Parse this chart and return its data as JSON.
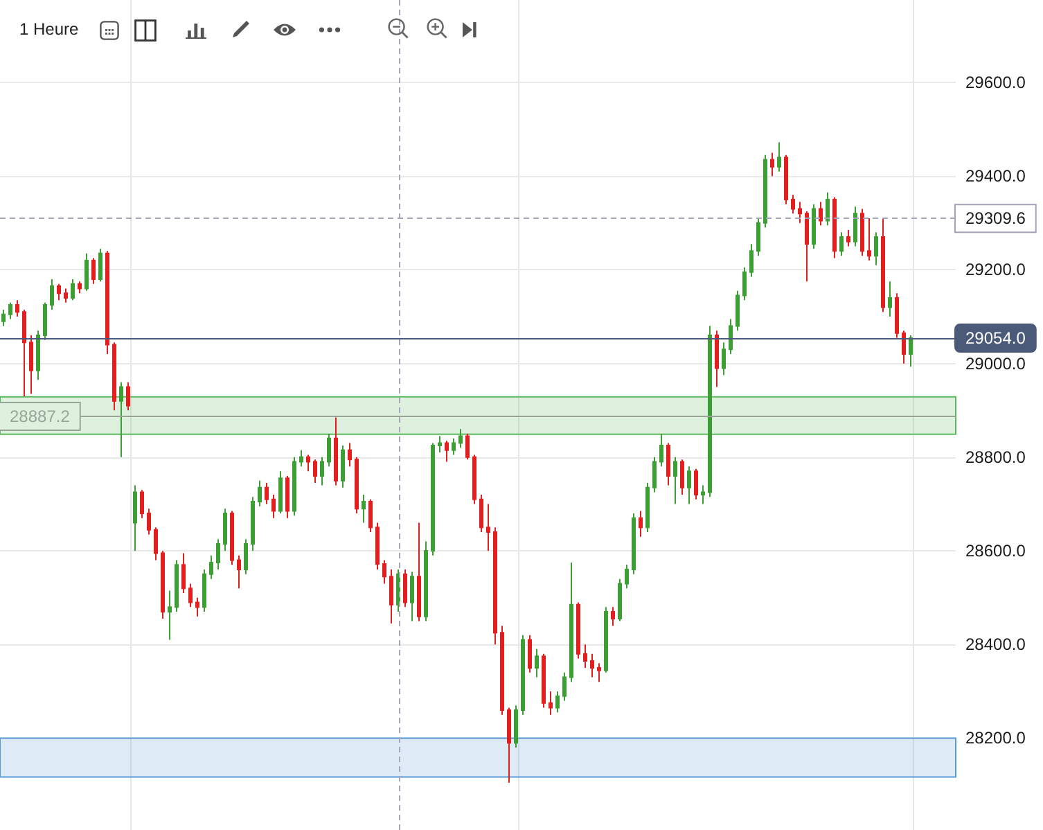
{
  "chart_data": {
    "type": "candlestick",
    "annotations": [
      "1 Heure"
    ],
    "categories": [
      null,
      null,
      null,
      null,
      null,
      null,
      null,
      null,
      null,
      null,
      null,
      null,
      null,
      null,
      null,
      null,
      null,
      null,
      null,
      null,
      null,
      null,
      null,
      null,
      null,
      null,
      null,
      null,
      null,
      null,
      null,
      null,
      null,
      null,
      null,
      null,
      null,
      null,
      null,
      null,
      null,
      null,
      null,
      null,
      null,
      null,
      null,
      null,
      null,
      null,
      null,
      null,
      null,
      null,
      null,
      null,
      null,
      null,
      null,
      null,
      null,
      null,
      null,
      null,
      null,
      null,
      null,
      null,
      null,
      null,
      null,
      null,
      null,
      null,
      null,
      null,
      null,
      null,
      null,
      null,
      null,
      null,
      null,
      null,
      null,
      null,
      null,
      null,
      null,
      null,
      null,
      null,
      null,
      null,
      null,
      null,
      null,
      null,
      null,
      null,
      null,
      null,
      null,
      null,
      null,
      null,
      null,
      null,
      null,
      null,
      null,
      null,
      null,
      null,
      null,
      null,
      null,
      null,
      null,
      null,
      null,
      null,
      null,
      null,
      null,
      null,
      null,
      null,
      null,
      null,
      null,
      null
    ],
    "ohlc": [
      [
        29090,
        29115,
        29080,
        29105
      ],
      [
        29105,
        29130,
        29095,
        29125
      ],
      [
        29125,
        29135,
        29100,
        29110
      ],
      [
        29110,
        29115,
        28930,
        29045
      ],
      [
        29045,
        29060,
        28935,
        28985
      ],
      [
        28985,
        29070,
        28965,
        29060
      ],
      [
        29060,
        29130,
        29050,
        29125
      ],
      [
        29125,
        29180,
        29115,
        29165
      ],
      [
        29165,
        29170,
        29135,
        29150
      ],
      [
        29150,
        29160,
        29130,
        29140
      ],
      [
        29140,
        29180,
        29135,
        29170
      ],
      [
        29170,
        29175,
        29150,
        29160
      ],
      [
        29160,
        29235,
        29155,
        29220
      ],
      [
        29220,
        29225,
        29170,
        29180
      ],
      [
        29180,
        29245,
        29175,
        29235
      ],
      [
        29235,
        29240,
        29020,
        29040
      ],
      [
        29040,
        29045,
        28900,
        28920
      ],
      [
        28920,
        28960,
        28800,
        28950
      ],
      [
        28950,
        28960,
        28900,
        28910
      ],
      [
        28660,
        28740,
        28600,
        28725
      ],
      [
        28725,
        28730,
        28670,
        28680
      ],
      [
        28680,
        28690,
        28635,
        28645
      ],
      [
        28645,
        28650,
        28580,
        28595
      ],
      [
        28595,
        28600,
        28455,
        28470
      ],
      [
        28470,
        28515,
        28410,
        28480
      ],
      [
        28480,
        28580,
        28470,
        28570
      ],
      [
        28570,
        28595,
        28510,
        28520
      ],
      [
        28520,
        28530,
        28480,
        28490
      ],
      [
        28490,
        28500,
        28460,
        28480
      ],
      [
        28480,
        28560,
        28470,
        28550
      ],
      [
        28550,
        28590,
        28540,
        28575
      ],
      [
        28575,
        28625,
        28560,
        28615
      ],
      [
        28615,
        28690,
        28600,
        28680
      ],
      [
        28680,
        28685,
        28570,
        28580
      ],
      [
        28580,
        28590,
        28520,
        28560
      ],
      [
        28560,
        28625,
        28550,
        28615
      ],
      [
        28615,
        28715,
        28600,
        28705
      ],
      [
        28705,
        28750,
        28695,
        28735
      ],
      [
        28735,
        28745,
        28700,
        28710
      ],
      [
        28710,
        28720,
        28670,
        28685
      ],
      [
        28685,
        28770,
        28680,
        28755
      ],
      [
        28755,
        28760,
        28670,
        28685
      ],
      [
        28685,
        28800,
        28675,
        28790
      ],
      [
        28790,
        28815,
        28780,
        28800
      ],
      [
        28800,
        28805,
        28770,
        28790
      ],
      [
        28790,
        28795,
        28745,
        28760
      ],
      [
        28760,
        28800,
        28740,
        28790
      ],
      [
        28790,
        28850,
        28780,
        28840
      ],
      [
        28840,
        28885,
        28740,
        28750
      ],
      [
        28750,
        28825,
        28735,
        28815
      ],
      [
        28815,
        28830,
        28780,
        28795
      ],
      [
        28795,
        28800,
        28680,
        28690
      ],
      [
        28690,
        28720,
        28660,
        28705
      ],
      [
        28705,
        28710,
        28640,
        28650
      ],
      [
        28650,
        28660,
        28560,
        28572
      ],
      [
        28572,
        28580,
        28530,
        28545
      ],
      [
        28545,
        28560,
        28445,
        28485
      ],
      [
        28485,
        28560,
        28470,
        28550
      ],
      [
        28550,
        28560,
        28480,
        28490
      ],
      [
        28490,
        28555,
        28450,
        28545
      ],
      [
        28545,
        28660,
        28450,
        28460
      ],
      [
        28460,
        28620,
        28450,
        28600
      ],
      [
        28600,
        28830,
        28590,
        28825
      ],
      [
        28825,
        28845,
        28810,
        28830
      ],
      [
        28830,
        28835,
        28790,
        28815
      ],
      [
        28815,
        28840,
        28805,
        28830
      ],
      [
        28830,
        28860,
        28820,
        28845
      ],
      [
        28845,
        28850,
        28795,
        28800
      ],
      [
        28800,
        28805,
        28700,
        28710
      ],
      [
        28710,
        28720,
        28640,
        28650
      ],
      [
        28650,
        28700,
        28600,
        28640
      ],
      [
        28640,
        28650,
        28400,
        28425
      ],
      [
        28425,
        28440,
        28250,
        28260
      ],
      [
        28260,
        28265,
        28105,
        28190
      ],
      [
        28190,
        28270,
        28180,
        28260
      ],
      [
        28260,
        28420,
        28250,
        28410
      ],
      [
        28410,
        28420,
        28340,
        28350
      ],
      [
        28350,
        28390,
        28330,
        28375
      ],
      [
        28375,
        28380,
        28265,
        28275
      ],
      [
        28275,
        28300,
        28250,
        28265
      ],
      [
        28265,
        28300,
        28255,
        28290
      ],
      [
        28290,
        28340,
        28280,
        28330
      ],
      [
        28330,
        28575,
        28320,
        28485
      ],
      [
        28485,
        28490,
        28370,
        28380
      ],
      [
        28380,
        28400,
        28350,
        28365
      ],
      [
        28365,
        28380,
        28330,
        28350
      ],
      [
        28350,
        28360,
        28320,
        28345
      ],
      [
        28345,
        28480,
        28340,
        28470
      ],
      [
        28470,
        28480,
        28440,
        28455
      ],
      [
        28455,
        28540,
        28450,
        28530
      ],
      [
        28530,
        28570,
        28520,
        28560
      ],
      [
        28560,
        28680,
        28550,
        28670
      ],
      [
        28670,
        28685,
        28630,
        28650
      ],
      [
        28650,
        28745,
        28640,
        28735
      ],
      [
        28735,
        28800,
        28725,
        28790
      ],
      [
        28790,
        28850,
        28780,
        28825
      ],
      [
        28825,
        28830,
        28740,
        28760
      ],
      [
        28760,
        28800,
        28700,
        28790
      ],
      [
        28790,
        28795,
        28720,
        28735
      ],
      [
        28735,
        28780,
        28700,
        28770
      ],
      [
        28770,
        28775,
        28710,
        28720
      ],
      [
        28720,
        28740,
        28700,
        28725
      ],
      [
        28725,
        29080,
        28715,
        29060
      ],
      [
        29060,
        29070,
        28950,
        28990
      ],
      [
        28990,
        29045,
        28975,
        29030
      ],
      [
        29030,
        29095,
        29020,
        29080
      ],
      [
        29080,
        29155,
        29070,
        29145
      ],
      [
        29145,
        29205,
        29135,
        29195
      ],
      [
        29195,
        29255,
        29185,
        29240
      ],
      [
        29240,
        29310,
        29230,
        29300
      ],
      [
        29300,
        29445,
        29290,
        29435
      ],
      [
        29435,
        29450,
        29400,
        29420
      ],
      [
        29420,
        29472,
        29410,
        29440
      ],
      [
        29440,
        29445,
        29340,
        29350
      ],
      [
        29350,
        29360,
        29320,
        29330
      ],
      [
        29330,
        29345,
        29300,
        29320
      ],
      [
        29320,
        29325,
        29175,
        29255
      ],
      [
        29255,
        29340,
        29245,
        29330
      ],
      [
        29330,
        29345,
        29295,
        29305
      ],
      [
        29305,
        29365,
        29295,
        29350
      ],
      [
        29350,
        29355,
        29225,
        29240
      ],
      [
        29240,
        29280,
        29230,
        29270
      ],
      [
        29270,
        29285,
        29250,
        29260
      ],
      [
        29260,
        29335,
        29250,
        29320
      ],
      [
        29320,
        29330,
        29230,
        29240
      ],
      [
        29240,
        29310,
        29220,
        29230
      ],
      [
        29230,
        29280,
        29210,
        29270
      ],
      [
        29270,
        29310,
        29110,
        29120
      ],
      [
        29120,
        29175,
        29100,
        29140
      ],
      [
        29140,
        29150,
        29055,
        29065
      ],
      [
        29065,
        29070,
        29000,
        29020
      ],
      [
        29020,
        29060,
        28993,
        29054
      ]
    ],
    "colors": [
      "#3d9e35",
      "#3d9e35",
      "#e31e1e",
      "#e31e1e",
      "#e31e1e",
      "#3d9e35",
      "#3d9e35",
      "#3d9e35",
      "#e31e1e",
      "#e31e1e",
      "#3d9e35",
      "#e31e1e",
      "#3d9e35",
      "#e31e1e",
      "#3d9e35",
      "#e31e1e",
      "#e31e1e",
      "#3d9e35",
      "#e31e1e",
      "#3d9e35",
      "#e31e1e",
      "#e31e1e",
      "#e31e1e",
      "#e31e1e",
      "#3d9e35",
      "#3d9e35",
      "#e31e1e",
      "#e31e1e",
      "#e31e1e",
      "#3d9e35",
      "#3d9e35",
      "#3d9e35",
      "#3d9e35",
      "#e31e1e",
      "#e31e1e",
      "#3d9e35",
      "#3d9e35",
      "#3d9e35",
      "#e31e1e",
      "#e31e1e",
      "#3d9e35",
      "#e31e1e",
      "#3d9e35",
      "#3d9e35",
      "#e31e1e",
      "#e31e1e",
      "#3d9e35",
      "#3d9e35",
      "#e31e1e",
      "#3d9e35",
      "#e31e1e",
      "#e31e1e",
      "#3d9e35",
      "#e31e1e",
      "#e31e1e",
      "#e31e1e",
      "#e31e1e",
      "#3d9e35",
      "#e31e1e",
      "#3d9e35",
      "#e31e1e",
      "#3d9e35",
      "#3d9e35",
      "#3d9e35",
      "#e31e1e",
      "#3d9e35",
      "#3d9e35",
      "#e31e1e",
      "#e31e1e",
      "#e31e1e",
      "#e31e1e",
      "#e31e1e",
      "#e31e1e",
      "#e31e1e",
      "#3d9e35",
      "#3d9e35",
      "#e31e1e",
      "#3d9e35",
      "#e31e1e",
      "#e31e1e",
      "#3d9e35",
      "#3d9e35",
      "#3d9e35",
      "#e31e1e",
      "#e31e1e",
      "#e31e1e",
      "#e31e1e",
      "#3d9e35",
      "#e31e1e",
      "#3d9e35",
      "#3d9e35",
      "#3d9e35",
      "#e31e1e",
      "#3d9e35",
      "#3d9e35",
      "#3d9e35",
      "#e31e1e",
      "#3d9e35",
      "#e31e1e",
      "#3d9e35",
      "#e31e1e",
      "#3d9e35",
      "#3d9e35",
      "#e31e1e",
      "#3d9e35",
      "#3d9e35",
      "#3d9e35",
      "#3d9e35",
      "#3d9e35",
      "#3d9e35",
      "#3d9e35",
      "#e31e1e",
      "#3d9e35",
      "#e31e1e",
      "#e31e1e",
      "#e31e1e",
      "#e31e1e",
      "#3d9e35",
      "#e31e1e",
      "#3d9e35",
      "#e31e1e",
      "#3d9e35",
      "#e31e1e",
      "#3d9e35",
      "#e31e1e",
      "#e31e1e",
      "#3d9e35",
      "#e31e1e",
      "#3d9e35",
      "#e31e1e",
      "#e31e1e",
      "#3d9e35"
    ],
    "ylim": [
      28004,
      29776
    ],
    "yticks": [
      {
        "value": 28200,
        "label": "28200.0"
      },
      {
        "value": 28400,
        "label": "28400.0"
      },
      {
        "value": 28600,
        "label": "28600.0"
      },
      {
        "value": 28800,
        "label": "28800.0"
      },
      {
        "value": 29000,
        "label": "29000.0"
      },
      {
        "value": 29200,
        "label": "29200.0"
      },
      {
        "value": 29400,
        "label": "29400.0"
      },
      {
        "value": 29600,
        "label": "29600.0"
      }
    ],
    "tick_labels": "y",
    "grid": "y",
    "ref_lines": [
      {
        "axis": "y",
        "value": 29309.6,
        "label": "29309.6",
        "color": "#a3a3b8",
        "line_style": "dashed"
      },
      {
        "axis": "y",
        "value": 29054,
        "label": "29054.0",
        "color": "#4a5a78",
        "line_style": "solid"
      },
      {
        "axis": "y",
        "value": 28887.2,
        "label": "28887.2",
        "color": "#9aa59a",
        "line_style": "solid"
      }
    ],
    "bands": [
      {
        "axis": "y",
        "from": 28849,
        "to": 28929,
        "color": "#5cb85c"
      },
      {
        "axis": "y",
        "from": 28117,
        "to": 28200,
        "color": "#5b9bd5"
      }
    ]
  }
}
